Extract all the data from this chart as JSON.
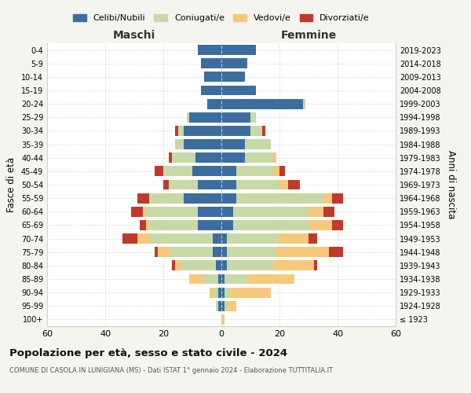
{
  "age_groups": [
    "100+",
    "95-99",
    "90-94",
    "85-89",
    "80-84",
    "75-79",
    "70-74",
    "65-69",
    "60-64",
    "55-59",
    "50-54",
    "45-49",
    "40-44",
    "35-39",
    "30-34",
    "25-29",
    "20-24",
    "15-19",
    "10-14",
    "5-9",
    "0-4"
  ],
  "birth_years": [
    "≤ 1923",
    "1924-1928",
    "1929-1933",
    "1934-1938",
    "1939-1943",
    "1944-1948",
    "1949-1953",
    "1954-1958",
    "1959-1963",
    "1964-1968",
    "1969-1973",
    "1974-1978",
    "1979-1983",
    "1984-1988",
    "1989-1993",
    "1994-1998",
    "1999-2003",
    "2004-2008",
    "2009-2013",
    "2014-2018",
    "2019-2023"
  ],
  "maschi": {
    "celibi": [
      0,
      1,
      1,
      1,
      2,
      3,
      3,
      8,
      8,
      13,
      8,
      10,
      9,
      13,
      13,
      11,
      5,
      7,
      6,
      7,
      8
    ],
    "coniugati": [
      0,
      1,
      2,
      5,
      12,
      15,
      22,
      17,
      18,
      12,
      10,
      10,
      8,
      3,
      2,
      1,
      0,
      0,
      0,
      0,
      0
    ],
    "vedovi": [
      0,
      0,
      1,
      5,
      2,
      4,
      4,
      1,
      1,
      0,
      0,
      0,
      0,
      0,
      0,
      0,
      0,
      0,
      0,
      0,
      0
    ],
    "divorziati": [
      0,
      0,
      0,
      0,
      1,
      1,
      5,
      2,
      4,
      4,
      2,
      3,
      1,
      0,
      1,
      0,
      0,
      0,
      0,
      0,
      0
    ]
  },
  "femmine": {
    "nubili": [
      0,
      1,
      1,
      1,
      2,
      2,
      2,
      4,
      4,
      5,
      5,
      5,
      8,
      8,
      10,
      10,
      28,
      12,
      8,
      9,
      12
    ],
    "coniugate": [
      0,
      1,
      2,
      8,
      16,
      17,
      18,
      26,
      26,
      30,
      15,
      13,
      10,
      9,
      4,
      2,
      1,
      0,
      0,
      0,
      0
    ],
    "vedove": [
      1,
      3,
      14,
      16,
      14,
      18,
      10,
      8,
      5,
      3,
      3,
      2,
      1,
      0,
      0,
      0,
      0,
      0,
      0,
      0,
      0
    ],
    "divorziate": [
      0,
      0,
      0,
      0,
      1,
      5,
      3,
      4,
      4,
      4,
      4,
      2,
      0,
      0,
      1,
      0,
      0,
      0,
      0,
      0,
      0
    ]
  },
  "colors": {
    "celibi": "#3d6d9e",
    "coniugati": "#c8d9a8",
    "vedovi": "#f5c87a",
    "divorziati": "#c0392b"
  },
  "xlim": 60,
  "title": "Popolazione per età, sesso e stato civile - 2024",
  "subtitle": "COMUNE DI CASOLA IN LUNIGIANA (MS) - Dati ISTAT 1° gennaio 2024 - Elaborazione TUTTITALIA.IT",
  "ylabel_left": "Fasce di età",
  "ylabel_right": "Anni di nascita",
  "xlabel_maschi": "Maschi",
  "xlabel_femmine": "Femmine",
  "legend_labels": [
    "Celibi/Nubili",
    "Coniugati/e",
    "Vedovi/e",
    "Divorziati/e"
  ],
  "bg_color": "#f5f5f0",
  "plot_bg": "#ffffff"
}
